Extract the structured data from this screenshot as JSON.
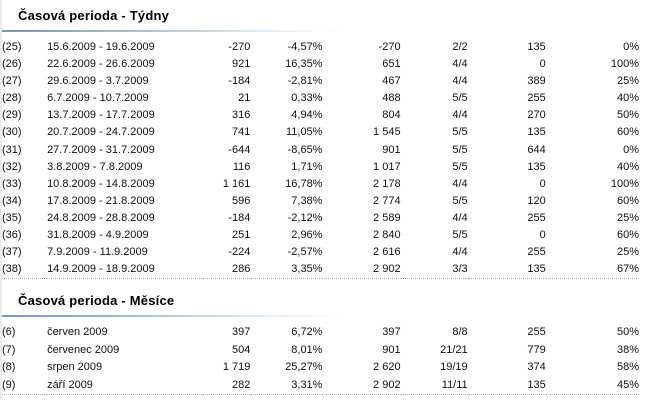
{
  "page": {
    "background_color": "#ffffff",
    "text_color": "#111111",
    "negative_value_color": "#cc2222",
    "accent_line_color": "#7296c0",
    "left_border_color": "#ececec",
    "table_bottom_rule_color": "#b0b0b0"
  },
  "sections": [
    {
      "id": "weeks",
      "title": "Časová perioda - Týdny",
      "rows": [
        {
          "idx": "(25)",
          "period": "15.6.2009 - 19.6.2009",
          "values": [
            "-270",
            "-4,57%",
            "-270",
            "2/2",
            "135",
            "0%"
          ]
        },
        {
          "idx": "(26)",
          "period": "22.6.2009 - 26.6.2009",
          "values": [
            "921",
            "16,35%",
            "651",
            "4/4",
            "0",
            "100%"
          ]
        },
        {
          "idx": "(27)",
          "period": "29.6.2009 - 3.7.2009",
          "values": [
            "-184",
            "-2,81%",
            "467",
            "4/4",
            "389",
            "25%"
          ]
        },
        {
          "idx": "(28)",
          "period": "6.7.2009 - 10.7.2009",
          "values": [
            "21",
            "0,33%",
            "488",
            "5/5",
            "255",
            "40%"
          ]
        },
        {
          "idx": "(29)",
          "period": "13.7.2009 - 17.7.2009",
          "values": [
            "316",
            "4,94%",
            "804",
            "4/4",
            "270",
            "50%"
          ]
        },
        {
          "idx": "(30)",
          "period": "20.7.2009 - 24.7.2009",
          "values": [
            "741",
            "11,05%",
            "1 545",
            "5/5",
            "135",
            "60%"
          ]
        },
        {
          "idx": "(31)",
          "period": "27.7.2009 - 31.7.2009",
          "values": [
            "-644",
            "-8,65%",
            "901",
            "5/5",
            "644",
            "0%"
          ]
        },
        {
          "idx": "(32)",
          "period": "3.8.2009 - 7.8.2009",
          "values": [
            "116",
            "1,71%",
            "1 017",
            "5/5",
            "135",
            "40%"
          ]
        },
        {
          "idx": "(33)",
          "period": "10.8.2009 - 14.8.2009",
          "values": [
            "1 161",
            "16,78%",
            "2 178",
            "4/4",
            "0",
            "100%"
          ]
        },
        {
          "idx": "(34)",
          "period": "17.8.2009 - 21.8.2009",
          "values": [
            "596",
            "7,38%",
            "2 774",
            "5/5",
            "120",
            "60%"
          ]
        },
        {
          "idx": "(35)",
          "period": "24.8.2009 - 28.8.2009",
          "values": [
            "-184",
            "-2,12%",
            "2 589",
            "4/4",
            "255",
            "25%"
          ]
        },
        {
          "idx": "(36)",
          "period": "31.8.2009 - 4.9.2009",
          "values": [
            "251",
            "2,96%",
            "2 840",
            "5/5",
            "0",
            "60%"
          ]
        },
        {
          "idx": "(37)",
          "period": "7.9.2009 - 11.9.2009",
          "values": [
            "-224",
            "-2,57%",
            "2 616",
            "4/4",
            "255",
            "25%"
          ]
        },
        {
          "idx": "(38)",
          "period": "14.9.2009 - 18.9.2009",
          "values": [
            "286",
            "3,35%",
            "2 902",
            "3/3",
            "135",
            "67%"
          ]
        }
      ]
    },
    {
      "id": "months",
      "title": "Časová perioda - Měsíce",
      "rows": [
        {
          "idx": "(6)",
          "period": "červen 2009",
          "values": [
            "397",
            "6,72%",
            "397",
            "8/8",
            "255",
            "50%"
          ]
        },
        {
          "idx": "(7)",
          "period": "červenec 2009",
          "values": [
            "504",
            "8,01%",
            "901",
            "21/21",
            "779",
            "38%"
          ]
        },
        {
          "idx": "(8)",
          "period": "srpen 2009",
          "values": [
            "1 719",
            "25,27%",
            "2 620",
            "19/19",
            "374",
            "58%"
          ]
        },
        {
          "idx": "(9)",
          "period": "září 2009",
          "values": [
            "282",
            "3,31%",
            "2 902",
            "11/11",
            "135",
            "45%"
          ]
        }
      ]
    }
  ]
}
